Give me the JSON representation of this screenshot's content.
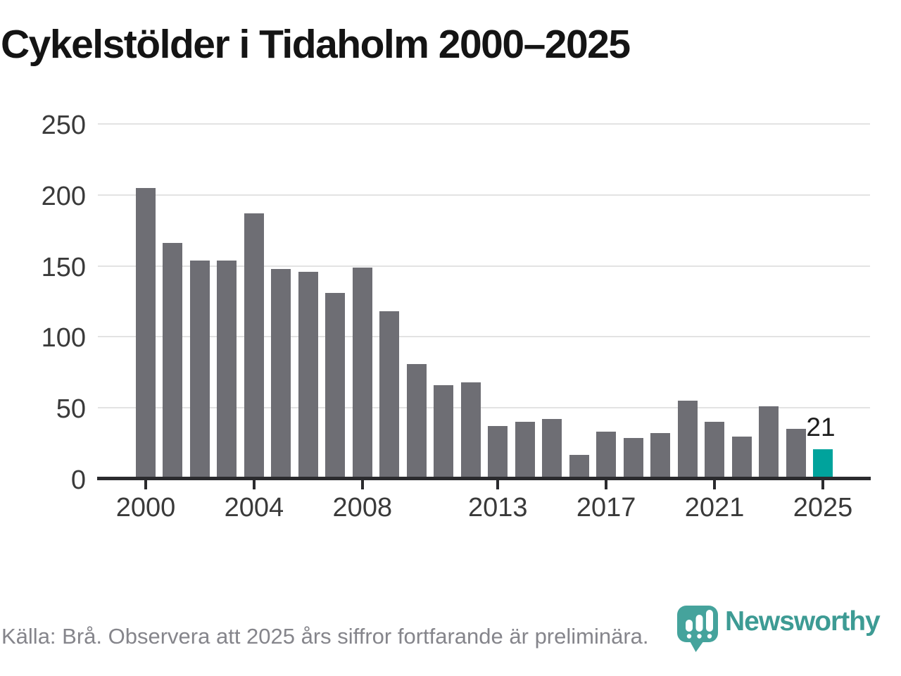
{
  "chart_data": {
    "type": "bar",
    "title": "Cykelstölder i Tidaholm 2000–2025",
    "x": [
      2000,
      2001,
      2002,
      2003,
      2004,
      2005,
      2006,
      2007,
      2008,
      2009,
      2010,
      2011,
      2012,
      2013,
      2014,
      2015,
      2016,
      2017,
      2018,
      2019,
      2020,
      2021,
      2022,
      2023,
      2024,
      2025
    ],
    "values": [
      205,
      166,
      154,
      154,
      187,
      148,
      146,
      131,
      149,
      118,
      81,
      66,
      68,
      37,
      40,
      42,
      17,
      33,
      29,
      32,
      55,
      40,
      30,
      51,
      35,
      21
    ],
    "highlight": {
      "year": 2025,
      "value": 21,
      "label": "21"
    },
    "ylim": [
      0,
      250
    ],
    "yticks": [
      0,
      50,
      100,
      150,
      200,
      250
    ],
    "xticks": [
      2000,
      2004,
      2008,
      2013,
      2017,
      2021,
      2025
    ],
    "grid": true,
    "legend": false,
    "bar_color": "#6e6e74",
    "highlight_color": "#00a39c"
  },
  "footer": {
    "source_note": "Källa: Brå. Observera att 2025 års siffror fortfarande är preliminära."
  },
  "branding": {
    "name": "Newsworthy",
    "icon": "newsworthy-bars-pin-icon",
    "badge_color": "#45a39c",
    "text_color": "#3d9b94"
  },
  "colors": {
    "axis": "#2b2b2e",
    "grid": "#e3e3e3",
    "text": "#3a3a3a",
    "muted_text": "#85858b"
  }
}
